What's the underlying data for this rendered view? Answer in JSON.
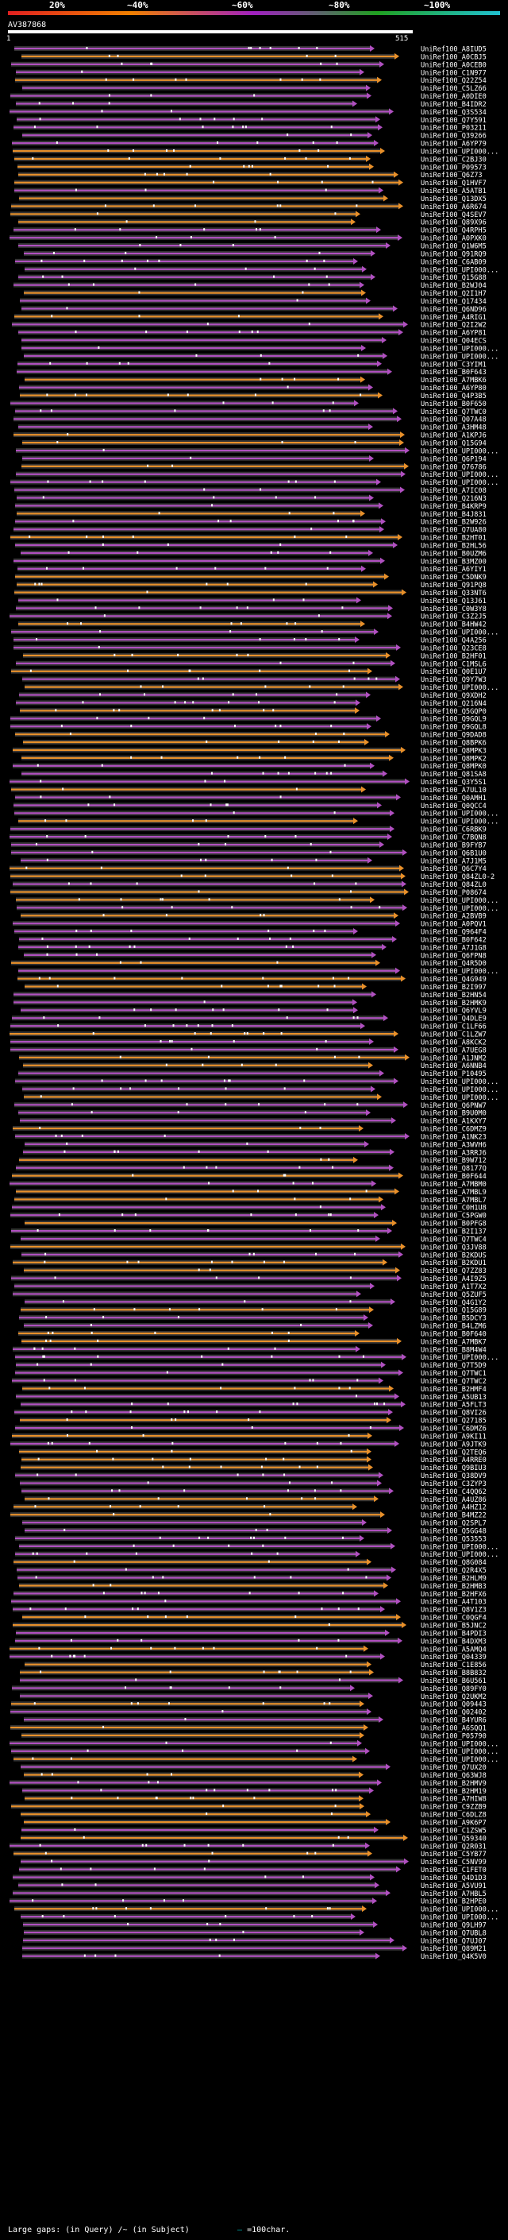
{
  "chart_data": {
    "type": "alignment-overview",
    "query_id": "AV387868",
    "query_length": 515,
    "axis": {
      "start_label": "1",
      "end_label": "515"
    },
    "identity_scale": [
      {
        "label": "20%",
        "color": "#e02020"
      },
      {
        "label": "~40%",
        "color": "#f08000"
      },
      {
        "label": "~60%",
        "color": "#a020c0"
      },
      {
        "label": "~80%",
        "color": "#20a020"
      },
      {
        "label": "~100%",
        "color": "#20c0d0"
      }
    ],
    "colors": {
      "purple": "#b050c0",
      "orange": "#e8902a",
      "gap": "#333333",
      "dot": "#ffffff"
    },
    "hits": [
      "UniRef100_A8IUD5",
      "UniRef100_A0CBJ5",
      "UniRef100_A0CEB0",
      "UniRef100_C1N977",
      "UniRef100_Q22Z54",
      "UniRef100_C5LZ66",
      "UniRef100_A0DIE0",
      "UniRef100_B4IDR2",
      "UniRef100_Q3S534",
      "UniRef100_Q7Y591",
      "UniRef100_P03211",
      "UniRef100_Q39266",
      "UniRef100_A6YP79",
      "UniRef100_UPI000...",
      "UniRef100_C2BJ30",
      "UniRef100_P09573",
      "UniRef100_Q6Z73",
      "UniRef100_Q1HVF7",
      "UniRef100_A5ATB1",
      "UniRef100_Q13DX5",
      "UniRef100_A6R674",
      "UniRef100_Q4SEV7",
      "UniRef100_Q89X96",
      "UniRef100_Q4RPH5",
      "UniRef100_A0PXK0",
      "UniRef100_Q1W6M5",
      "UniRef100_Q91RQ9",
      "UniRef100_C6AB09",
      "UniRef100_UPI000...",
      "UniRef100_Q15G88",
      "UniRef100_B2WJ04",
      "UniRef100_Q2I1H7",
      "UniRef100_Q17434",
      "UniRef100_Q6ND96",
      "UniRef100_A4RIG1",
      "UniRef100_Q2I2W2",
      "UniRef100_A6YP81",
      "UniRef100_Q04ECS",
      "UniRef100_UPI000...",
      "UniRef100_UPI000...",
      "UniRef100_C3YIM1",
      "UniRef100_B0F643",
      "UniRef100_A7MBK6",
      "UniRef100_A6YP80",
      "UniRef100_Q4P3B5",
      "UniRef100_B0F650",
      "UniRef100_Q7TWC0",
      "UniRef100_Q07A48",
      "UniRef100_A3HM48",
      "UniRef100_A1KPJ6",
      "UniRef100_Q15G94",
      "UniRef100_UPI000...",
      "UniRef100_Q6P194",
      "UniRef100_Q76786",
      "UniRef100_UPI000...",
      "UniRef100_UPI000...",
      "UniRef100_A7IC08",
      "UniRef100_Q216N3",
      "UniRef100_B4KRP9",
      "UniRef100_B4J831",
      "UniRef100_B2W926",
      "UniRef100_Q7UA80",
      "UniRef100_B2HT01",
      "UniRef100_B2HL56",
      "UniRef100_B0UZM6",
      "UniRef100_B3MZ00",
      "UniRef100_A6YIY1",
      "UniRef100_C5DNK9",
      "UniRef100_Q91PQ8",
      "UniRef100_Q33NT6",
      "UniRef100_Q13J61",
      "UniRef100_C0W3Y8",
      "UniRef100_C3Z2J5",
      "UniRef100_B4HW42",
      "UniRef100_UPI000...",
      "UniRef100_Q4A256",
      "UniRef100_Q23CE8",
      "UniRef100_B2HF01",
      "UniRef100_C1MSL6",
      "UniRef100_Q0E1U7",
      "UniRef100_Q9Y7W3",
      "UniRef100_UPI000...",
      "UniRef100_Q9XDH2",
      "UniRef100_Q216N4",
      "UniRef100_Q5GQP0",
      "UniRef100_Q9GQL9",
      "UniRef100_Q9GQL8",
      "UniRef100_Q9DAD8",
      "UniRef100_Q8BPK6",
      "UniRef100_Q8MPK3",
      "UniRef100_Q8MPK2",
      "UniRef100_Q8MPK0",
      "UniRef100_Q81SA8",
      "UniRef100_Q3Y5S1",
      "UniRef100_A7UL10",
      "UniRef100_Q0AMH1",
      "UniRef100_Q0QCC4",
      "UniRef100_UPI000...",
      "UniRef100_UPI000...",
      "UniRef100_C6RBK9",
      "UniRef100_C7BQN8",
      "UniRef100_B9FYB7",
      "UniRef100_Q6B1U0",
      "UniRef100_A7J1M5",
      "UniRef100_Q6C7Y4",
      "UniRef100_Q84ZL0-2",
      "UniRef100_Q84ZL0",
      "UniRef100_P08674",
      "UniRef100_UPI000...",
      "UniRef100_UPI000...",
      "UniRef100_A2BVB9",
      "UniRef100_A0PQV1",
      "UniRef100_Q964F4",
      "UniRef100_B0F642",
      "UniRef100_A7J1G8",
      "UniRef100_Q6FPN8",
      "UniRef100_Q4R5D0",
      "UniRef100_UPI000...",
      "UniRef100_Q4G949",
      "UniRef100_B2I997",
      "UniRef100_B2HN54",
      "UniRef100_B2HMK9",
      "UniRef100_Q6YVL9",
      "UniRef100_Q4DLE9",
      "UniRef100_C1LF66",
      "UniRef100_C1LZW7",
      "UniRef100_A8KCK2",
      "UniRef100_A7UEG8",
      "UniRef100_A1JNM2",
      "UniRef100_A6NNB4",
      "UniRef100_P10495",
      "UniRef100_UPI000...",
      "UniRef100_UPI000...",
      "UniRef100_UPI000...",
      "UniRef100_Q6PNW7",
      "UniRef100_B9U0M0",
      "UniRef100_A1KXY7",
      "UniRef100_C6DMZ9",
      "UniRef100_A1NK23",
      "UniRef100_A3WVH6",
      "UniRef100_A3RRJ6",
      "UniRef100_B9W712",
      "UniRef100_Q8177Q",
      "UniRef100_B0F644",
      "UniRef100_A7MBM0",
      "UniRef100_A7MBL9",
      "UniRef100_A7MBL7",
      "UniRef100_C0H1U8",
      "UniRef100_C5PGW0",
      "UniRef100_B0PFG8",
      "UniRef100_B2I137",
      "UniRef100_Q7TWC4",
      "UniRef100_Q3JV88",
      "UniRef100_B2KDUS",
      "UniRef100_B2KDU1",
      "UniRef100_Q7ZZ83",
      "UniRef100_A4I9Z5",
      "UniRef100_A1T7X2",
      "UniRef100_Q5ZUF5",
      "UniRef100_Q4G1Y2",
      "UniRef100_Q15G89",
      "UniRef100_B5DCY3",
      "UniRef100_B4LZM6",
      "UniRef100_B0F640",
      "UniRef100_A7MBK7",
      "UniRef100_B8M4W4",
      "UniRef100_UPI000...",
      "UniRef100_Q7T5D9",
      "UniRef100_Q7TWC1",
      "UniRef100_Q7TWC2",
      "UniRef100_B2HMF4",
      "UniRef100_A5UB13",
      "UniRef100_A5FLT3",
      "UniRef100_Q8VI26",
      "UniRef100_Q27185",
      "UniRef100_C6DMZ6",
      "UniRef100_A9KI11",
      "UniRef100_A9JTK9",
      "UniRef100_Q2TEQ6",
      "UniRef100_A4RRE0",
      "UniRef100_Q9BIU3",
      "UniRef100_Q38DV9",
      "UniRef100_C3ZYP3",
      "UniRef100_C4QQ62",
      "UniRef100_A4UZ86",
      "UniRef100_A4HZ12",
      "UniRef100_B4MZ22",
      "UniRef100_Q2SPL7",
      "UniRef100_Q5GG48",
      "UniRef100_Q53553",
      "UniRef100_UPI000...",
      "UniRef100_UPI000...",
      "UniRef100_Q8G084",
      "UniRef100_Q2R4X5",
      "UniRef100_B2HLM9",
      "UniRef100_B2HMB3",
      "UniRef100_B2HFX6",
      "UniRef100_A4T103",
      "UniRef100_Q8V1Z3",
      "UniRef100_C0QGF4",
      "UniRef100_B5JNC2",
      "UniRef100_B4PDI3",
      "UniRef100_B4DXM3",
      "UniRef100_A5AMQ4",
      "UniRef100_Q04339",
      "UniRef100_C1E856",
      "UniRef100_B8B832",
      "UniRef100_B6U561",
      "UniRef100_Q89FY0",
      "UniRef100_Q2UKM2",
      "UniRef100_Q09443",
      "UniRef100_Q02402",
      "UniRef100_B4YUR6",
      "UniRef100_A6SQQ1",
      "UniRef100_P05790",
      "UniRef100_UPI000...",
      "UniRef100_UPI000...",
      "UniRef100_UPI000...",
      "UniRef100_Q7UX20",
      "UniRef100_Q63WJ8",
      "UniRef100_B2HMV9",
      "UniRef100_B2HM19",
      "UniRef100_A7HIW8",
      "UniRef100_C9ZZB9",
      "UniRef100_C6DLZ8",
      "UniRef100_A9K6P7",
      "UniRef100_C1ZSW5",
      "UniRef100_Q59340",
      "UniRef100_Q2R031",
      "UniRef100_C5YB77",
      "UniRef100_C5NV99",
      "UniRef100_C1FET0",
      "UniRef100_Q4D1D3",
      "UniRef100_A5VU91",
      "UniRef100_A7HBL5",
      "UniRef100_B2HPE0",
      "UniRef100_UPI000...",
      "UniRef100_UPI000...",
      "UniRef100_Q9LH97",
      "UniRef100_Q7UBL8",
      "UniRef100_Q7UJ07",
      "UniRef100_Q89M21",
      "UniRef100_Q4K5V0"
    ],
    "footer": {
      "gaps_label": "Large gaps:",
      "in_query": "(in Query)",
      "in_subject": "/~ (in Subject)",
      "scale_label": "=100char."
    }
  }
}
